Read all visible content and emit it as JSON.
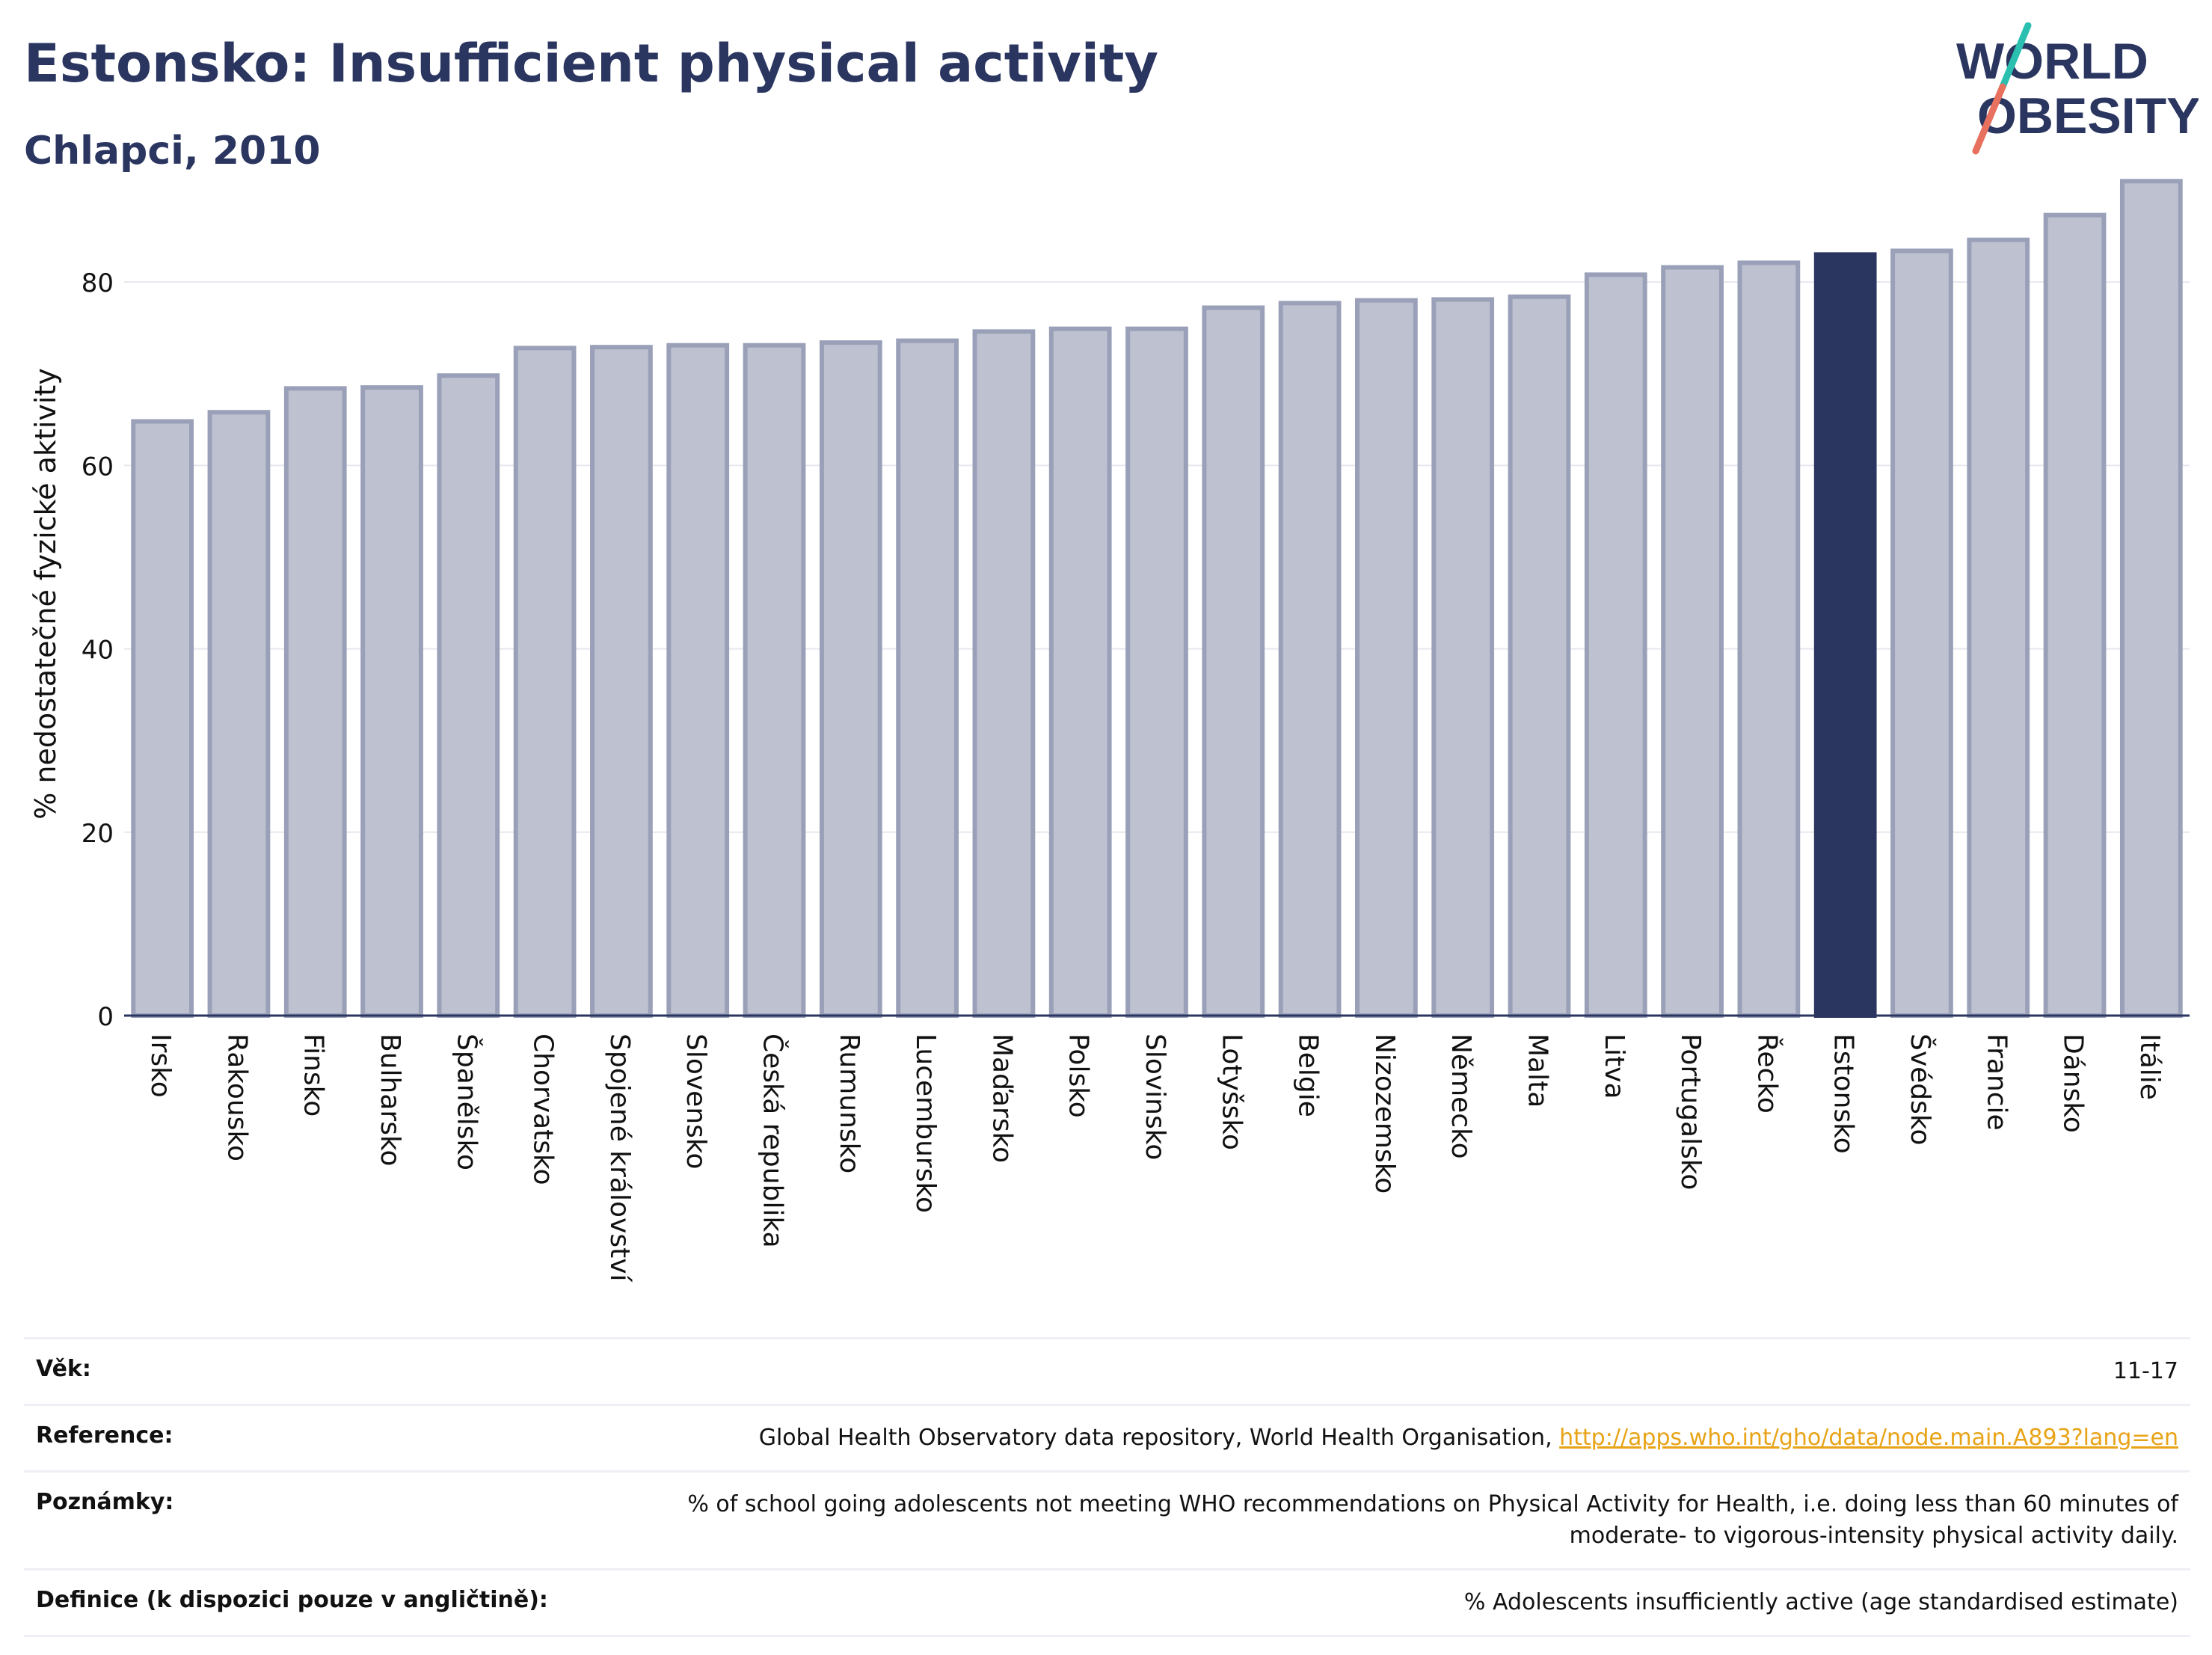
{
  "header": {
    "title": "Estonsko: Insufficient physical activity",
    "subtitle": "Chlapci, 2010"
  },
  "logo": {
    "line1": "WORLD",
    "line2": "OBESITY",
    "colors": {
      "text": "#2a3560",
      "slash_top": "#2bbfb0",
      "slash_bottom": "#e8705f"
    }
  },
  "colors": {
    "bar": "#bec1d0",
    "bar_outline": "#9aa0b8",
    "highlight": "#2a3560",
    "grid": "#e6e8ef",
    "axis": "#2a3560",
    "link": "#e8a317"
  },
  "chart_data": {
    "type": "bar",
    "title": "Estonsko: Insufficient physical activity",
    "subtitle": "Chlapci, 2010",
    "xlabel": "",
    "ylabel": "% nedostatečné fyzické aktivity",
    "ylim": [
      0,
      92
    ],
    "yticks": [
      0,
      20,
      40,
      60,
      80
    ],
    "grid": true,
    "highlight": "Estonsko",
    "categories": [
      "Irsko",
      "Rakousko",
      "Finsko",
      "Bulharsko",
      "Španělsko",
      "Chorvatsko",
      "Spojené království",
      "Slovensko",
      "Česká republika",
      "Rumunsko",
      "Lucembursko",
      "Maďarsko",
      "Polsko",
      "Slovinsko",
      "Lotyšsko",
      "Belgie",
      "Nizozemsko",
      "Německo",
      "Malta",
      "Litva",
      "Portugalsko",
      "Řecko",
      "Estonsko",
      "Švédsko",
      "Francie",
      "Dánsko",
      "Itálie"
    ],
    "values": [
      64.8,
      65.8,
      68.4,
      68.5,
      69.8,
      72.8,
      72.9,
      73.1,
      73.1,
      73.4,
      73.6,
      74.6,
      74.9,
      74.9,
      77.2,
      77.7,
      78.0,
      78.1,
      78.4,
      80.8,
      81.6,
      82.1,
      83.0,
      83.4,
      84.6,
      87.3,
      91.0
    ]
  },
  "metadata": [
    {
      "label": "Věk:",
      "value": "11-17"
    },
    {
      "label": "Reference:",
      "value": "Global Health Observatory data repository, World Health Organisation, ",
      "link": "http://apps.who.int/gho/data/node.main.A893?lang=en"
    },
    {
      "label": "Poznámky:",
      "value": "% of school going adolescents not meeting WHO recommendations on Physical Activity for Health, i.e. doing less than 60 minutes of moderate- to vigorous-intensity physical activity daily."
    },
    {
      "label": "Definice (k dispozici pouze v angličtině):",
      "value": "% Adolescents insufficiently active (age standardised estimate)"
    }
  ]
}
